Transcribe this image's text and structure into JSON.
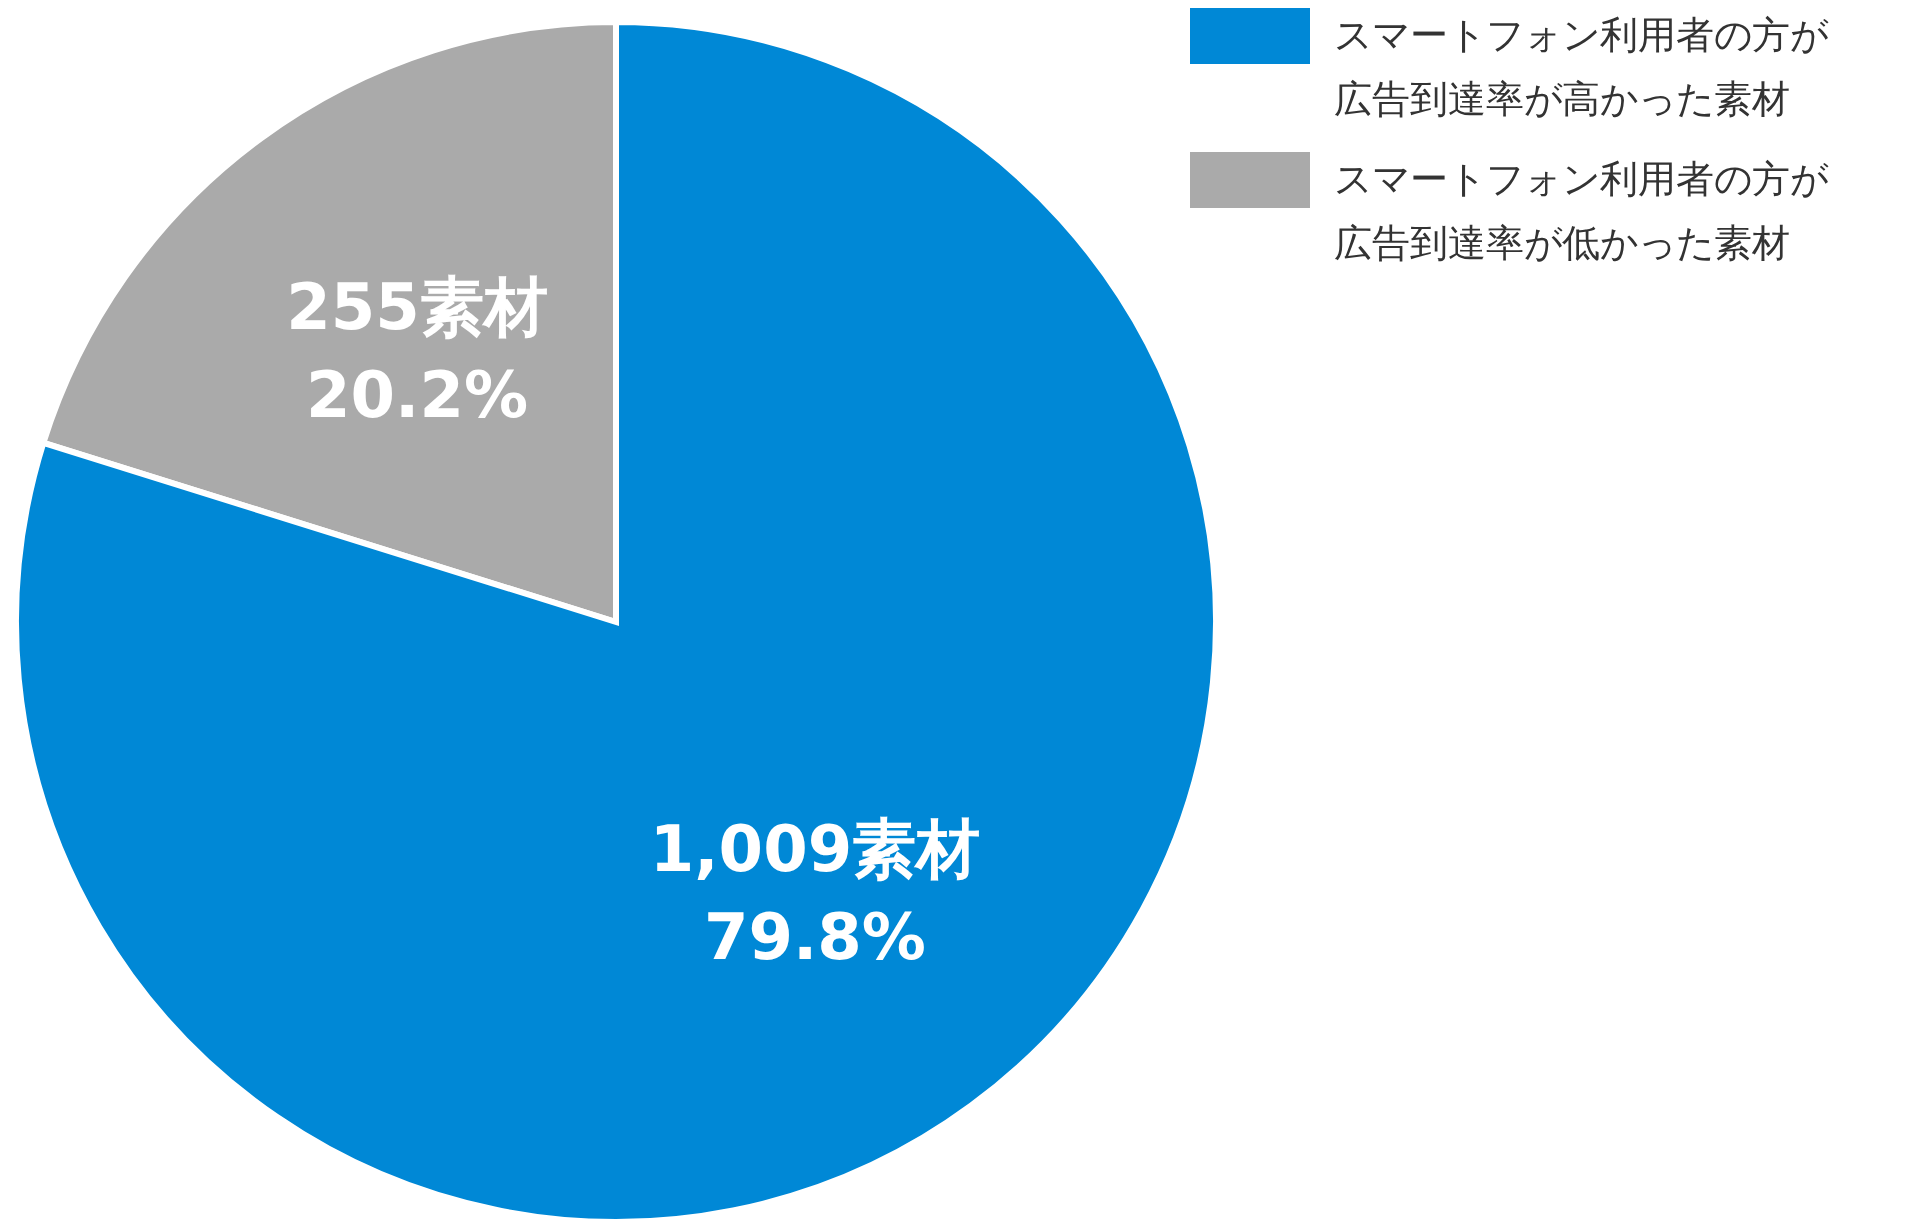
{
  "chart_data": {
    "type": "pie",
    "categories": [
      "スマートフォン利用者の方が広告到達率が高かった素材",
      "スマートフォン利用者の方が広告到達率が低かった素材"
    ],
    "values": [
      1009,
      255
    ],
    "colors": [
      "#0088d6",
      "#aaaaaa"
    ],
    "value_labels": [
      "1,009素材\n79.8%",
      "255素材\n20.2%"
    ],
    "legend": "top right"
  }
}
